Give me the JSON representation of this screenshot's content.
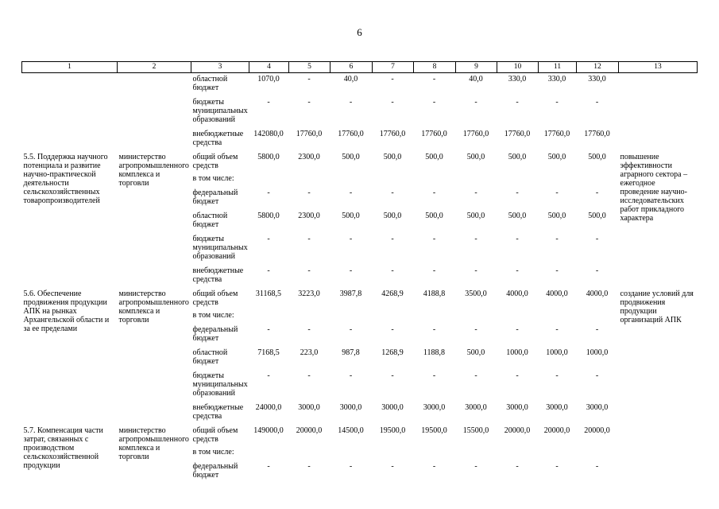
{
  "page": {
    "number": "6"
  },
  "table": {
    "column_numbers": [
      "1",
      "2",
      "3",
      "4",
      "5",
      "6",
      "7",
      "8",
      "9",
      "10",
      "11",
      "12",
      "13"
    ],
    "sections": [
      {
        "title": "",
        "executor": "",
        "expected": "",
        "rows": [
          {
            "label": "областной бюджет",
            "values": [
              "1070,0",
              "-",
              "40,0",
              "-",
              "-",
              "40,0",
              "330,0",
              "330,0",
              "330,0"
            ]
          },
          {
            "label": "бюджеты муниципальных образований",
            "values": [
              "-",
              "-",
              "-",
              "-",
              "-",
              "-",
              "-",
              "-",
              "-"
            ]
          },
          {
            "label": "внебюджетные средства",
            "values": [
              "142080,0",
              "17760,0",
              "17760,0",
              "17760,0",
              "17760,0",
              "17760,0",
              "17760,0",
              "17760,0",
              "17760,0"
            ]
          }
        ]
      },
      {
        "title": "5.5. Поддержка научного потенциала и развитие научно-практической деятельности сельскохозяйственных товаропроизводителей",
        "executor": "министерство агропромышленного комплекса и торговли",
        "expected": "повышение эффективности аграрного сектора – ежегодное проведение научно-исследовательских работ прикладного характера",
        "rows": [
          {
            "label": "общий объем средств",
            "sublabel": "в том числе:",
            "values": [
              "5800,0",
              "2300,0",
              "500,0",
              "500,0",
              "500,0",
              "500,0",
              "500,0",
              "500,0",
              "500,0"
            ]
          },
          {
            "label": "федеральный бюджет",
            "values": [
              "-",
              "-",
              "-",
              "-",
              "-",
              "-",
              "-",
              "-",
              "-"
            ]
          },
          {
            "label": "областной бюджет",
            "values": [
              "5800,0",
              "2300,0",
              "500,0",
              "500,0",
              "500,0",
              "500,0",
              "500,0",
              "500,0",
              "500,0"
            ]
          },
          {
            "label": "бюджеты муниципальных образований",
            "values": [
              "-",
              "-",
              "-",
              "-",
              "-",
              "-",
              "-",
              "-",
              "-"
            ]
          },
          {
            "label": "внебюджетные средства",
            "values": [
              "-",
              "-",
              "-",
              "-",
              "-",
              "-",
              "-",
              "-",
              "-"
            ]
          }
        ]
      },
      {
        "title": "5.6. Обеспечение продвижения продукции АПК на рынках Архангельской области и за ее пределами",
        "executor": "министерство агропромышленного комплекса и торговли",
        "expected": "создание условий для продвижения продукции организаций АПК",
        "rows": [
          {
            "label": "общий объем средств",
            "sublabel": "в том числе:",
            "values": [
              "31168,5",
              "3223,0",
              "3987,8",
              "4268,9",
              "4188,8",
              "3500,0",
              "4000,0",
              "4000,0",
              "4000,0"
            ]
          },
          {
            "label": "федеральный бюджет",
            "values": [
              "-",
              "-",
              "-",
              "-",
              "-",
              "-",
              "-",
              "-",
              "-"
            ]
          },
          {
            "label": "областной бюджет",
            "values": [
              "7168,5",
              "223,0",
              "987,8",
              "1268,9",
              "1188,8",
              "500,0",
              "1000,0",
              "1000,0",
              "1000,0"
            ]
          },
          {
            "label": "бюджеты муниципальных образований",
            "values": [
              "-",
              "-",
              "-",
              "-",
              "-",
              "-",
              "-",
              "-",
              "-"
            ]
          },
          {
            "label": "внебюджетные средства",
            "values": [
              "24000,0",
              "3000,0",
              "3000,0",
              "3000,0",
              "3000,0",
              "3000,0",
              "3000,0",
              "3000,0",
              "3000,0"
            ]
          }
        ]
      },
      {
        "title": "5.7.  Компенсация части затрат, связанных с производством сельскохозяйственной продукции",
        "executor": "министерство агропромышленного комплекса и торговли",
        "expected": "",
        "rows": [
          {
            "label": "общий объем средств",
            "sublabel": "в том числе:",
            "values": [
              "149000,0",
              "20000,0",
              "14500,0",
              "19500,0",
              "19500,0",
              "15500,0",
              "20000,0",
              "20000,0",
              "20000,0"
            ]
          },
          {
            "label": "федеральный бюджет",
            "values": [
              "-",
              "-",
              "-",
              "-",
              "-",
              "-",
              "-",
              "-",
              "-"
            ]
          }
        ]
      }
    ]
  }
}
